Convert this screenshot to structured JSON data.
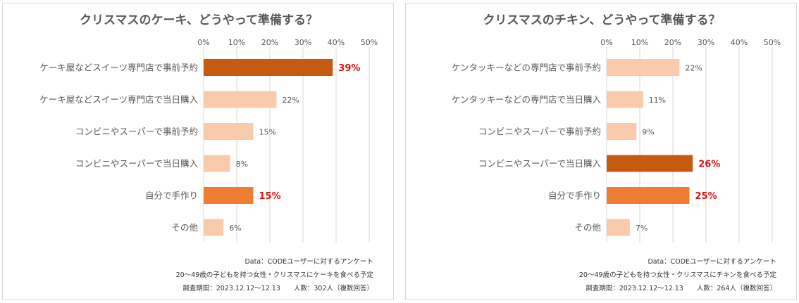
{
  "chart_data": [
    {
      "type": "bar",
      "orientation": "horizontal",
      "title": "クリスマスのケーキ、どうやって準備する？",
      "categories": [
        "ケーキ屋などスイーツ専門店で事前予約",
        "ケーキ屋などスイーツ専門店で当日購入",
        "コンビニやスーパーで事前予約",
        "コンビニやスーパーで当日購入",
        "自分で手作り",
        "その他"
      ],
      "values": [
        39,
        22,
        15,
        8,
        15,
        6
      ],
      "value_labels": [
        "39%",
        "22%",
        "15%",
        "8%",
        "15%",
        "6%"
      ],
      "bar_colors": [
        "#c55a11",
        "#f8cbad",
        "#f8cbad",
        "#f8cbad",
        "#ed7d31",
        "#f8cbad"
      ],
      "label_highlight": [
        true,
        false,
        false,
        false,
        true,
        false
      ],
      "xlim": [
        0,
        50
      ],
      "x_ticks": [
        "0%",
        "10%",
        "20%",
        "30%",
        "40%",
        "50%"
      ],
      "grid": true,
      "notes": [
        "Data：CODEユーザーに対するアンケート",
        "20～49歳の子どもを持つ女性・クリスマスにケーキを食べる予定",
        "調査期間：2023.12.12～12.13　　人数：302人（複数回答）"
      ]
    },
    {
      "type": "bar",
      "orientation": "horizontal",
      "title": "クリスマスのチキン、どうやって準備する？",
      "categories": [
        "ケンタッキーなどの専門店で事前予約",
        "ケンタッキーなどの専門店で当日購入",
        "コンビニやスーパーで事前予約",
        "コンビニやスーパーで当日購入",
        "自分で手作り",
        "その他"
      ],
      "values": [
        22,
        11,
        9,
        26,
        25,
        7
      ],
      "value_labels": [
        "22%",
        "11%",
        "9%",
        "26%",
        "25%",
        "7%"
      ],
      "bar_colors": [
        "#f8cbad",
        "#f8cbad",
        "#f8cbad",
        "#c55a11",
        "#ed7d31",
        "#f8cbad"
      ],
      "label_highlight": [
        false,
        false,
        false,
        true,
        true,
        false
      ],
      "xlim": [
        0,
        50
      ],
      "x_ticks": [
        "0%",
        "10%",
        "20%",
        "30%",
        "40%",
        "50%"
      ],
      "grid": true,
      "notes": [
        "Data：CODEユーザーに対するアンケート",
        "20～49歳の子どもを持つ女性・クリスマスにチキンを食べる予定",
        "調査期間：2023.12.12～12.13　　人数：264人（複数回答）"
      ]
    }
  ],
  "colors": {
    "grid": "#d9d9d9",
    "text": "#595959",
    "highlight_label": "#e0100f"
  }
}
